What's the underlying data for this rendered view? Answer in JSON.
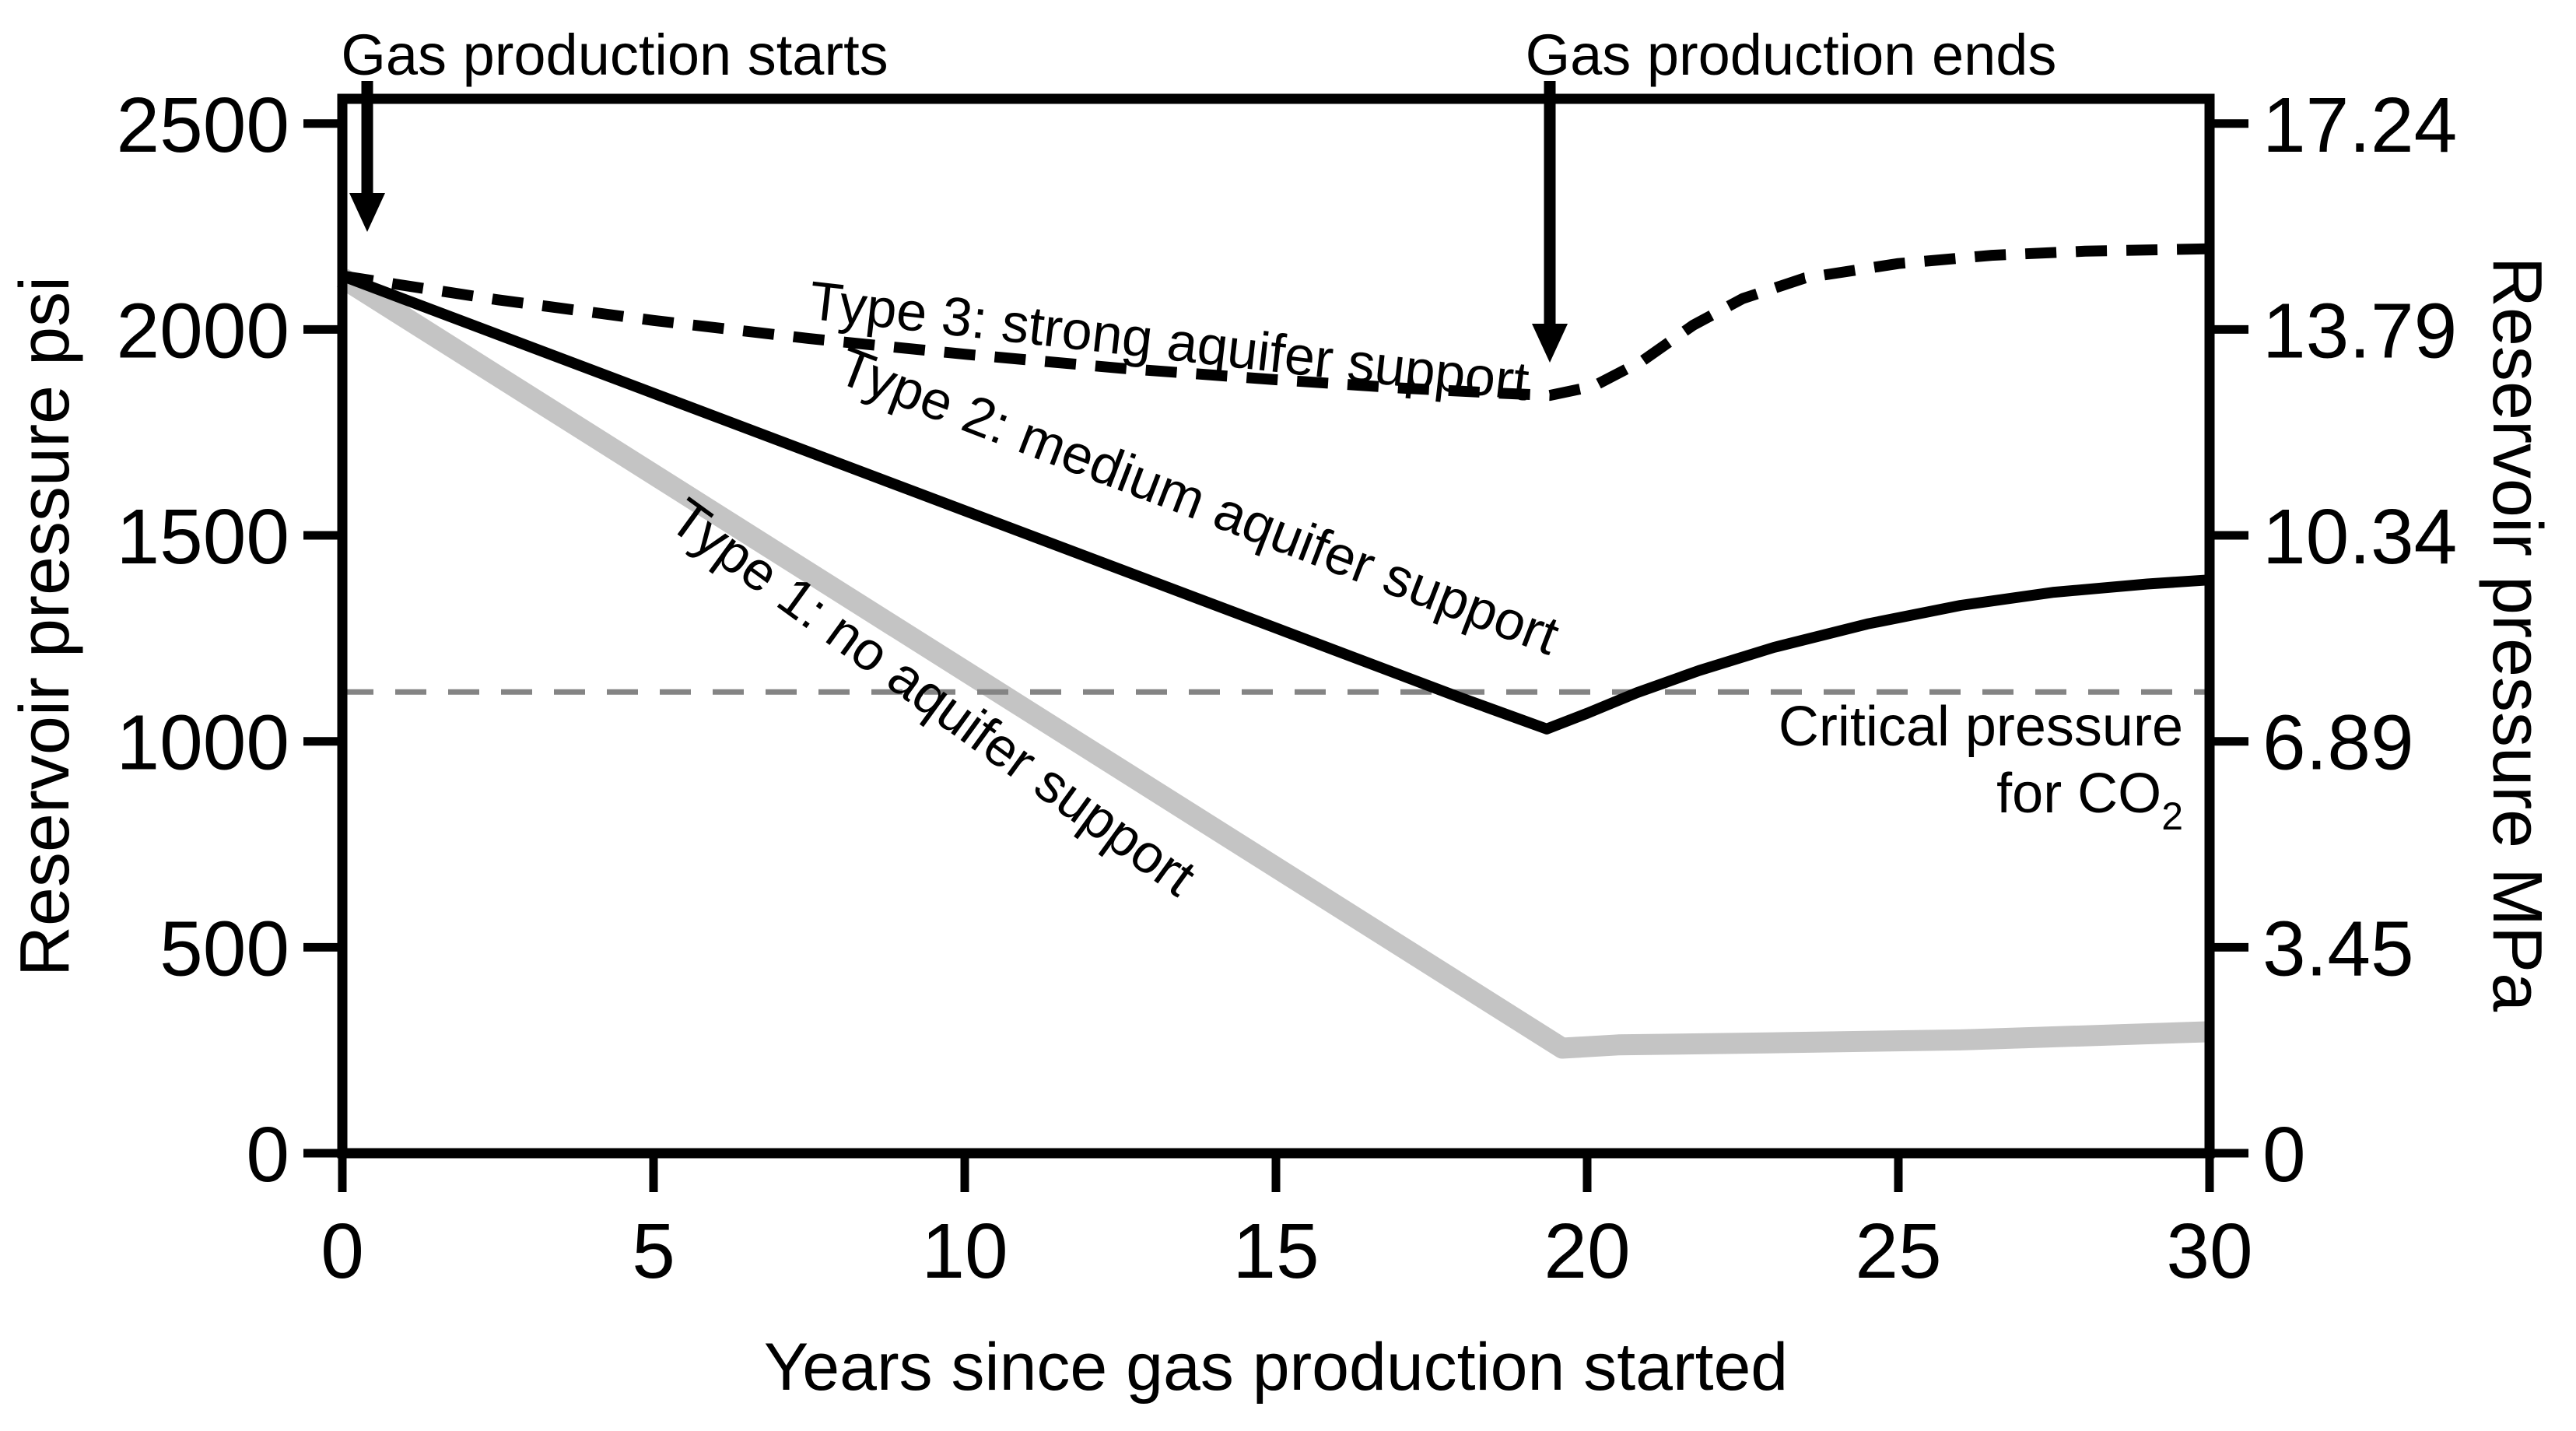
{
  "page": {
    "background": "#ffffff"
  },
  "chart_data": {
    "type": "line",
    "title": "",
    "xlabel": "Years since gas production started",
    "ylabel_left": "Reservoir pressure psi",
    "ylabel_right": "Reservoir pressure MPa",
    "xlim": [
      0,
      30
    ],
    "ylim_psi": [
      0,
      2560
    ],
    "x_ticks": [
      0,
      5,
      10,
      15,
      20,
      25,
      30
    ],
    "y_ticks_psi": [
      0,
      500,
      1000,
      1500,
      2000,
      2500
    ],
    "y_ticks_mpa_labels": [
      "0",
      "3.45",
      "6.89",
      "10.34",
      "13.79",
      "17.24"
    ],
    "grid": "off",
    "legend": "inline-rotated-labels",
    "critical_pressure_psi": 1120,
    "critical_line_color": "#848484",
    "axis_color": "#000000",
    "critical_label": {
      "line1": "Critical pressure",
      "line2_prefix": "for CO",
      "subscript": "2"
    },
    "annotations": {
      "production_starts": "Gas production starts",
      "production_ends": "Gas production ends"
    },
    "events": {
      "production_start_year": 0,
      "production_end_year": 19.4
    },
    "series": [
      {
        "name": "Type 1: no aquifer support",
        "style": "thick-gray",
        "color": "#c4c4c4",
        "points": [
          [
            0,
            2125
          ],
          [
            19.6,
            255
          ],
          [
            20.5,
            263
          ],
          [
            23,
            268
          ],
          [
            26,
            275
          ],
          [
            30,
            295
          ]
        ]
      },
      {
        "name": "Type 2: medium aquifer support",
        "style": "solid-black",
        "color": "#000000",
        "points": [
          [
            0,
            2130
          ],
          [
            5,
            1845
          ],
          [
            10,
            1560
          ],
          [
            15,
            1275
          ],
          [
            18,
            1104
          ],
          [
            19.35,
            1030
          ],
          [
            20,
            1068
          ],
          [
            20.8,
            1118
          ],
          [
            21.8,
            1172
          ],
          [
            23,
            1228
          ],
          [
            24.5,
            1285
          ],
          [
            26,
            1330
          ],
          [
            27.5,
            1362
          ],
          [
            29,
            1382
          ],
          [
            30,
            1392
          ]
        ]
      },
      {
        "name": "Type 3: strong aquifer support",
        "style": "dashed-black",
        "color": "#000000",
        "points": [
          [
            0,
            2130
          ],
          [
            2.5,
            2072
          ],
          [
            5,
            2022
          ],
          [
            7.5,
            1978
          ],
          [
            10,
            1940
          ],
          [
            12.5,
            1906
          ],
          [
            15,
            1878
          ],
          [
            17,
            1858
          ],
          [
            18.5,
            1846
          ],
          [
            19.4,
            1840
          ],
          [
            20.1,
            1862
          ],
          [
            20.9,
            1925
          ],
          [
            21.7,
            2010
          ],
          [
            22.5,
            2075
          ],
          [
            23.5,
            2125
          ],
          [
            25,
            2160
          ],
          [
            26.5,
            2180
          ],
          [
            28,
            2190
          ],
          [
            30,
            2196
          ]
        ]
      }
    ]
  }
}
